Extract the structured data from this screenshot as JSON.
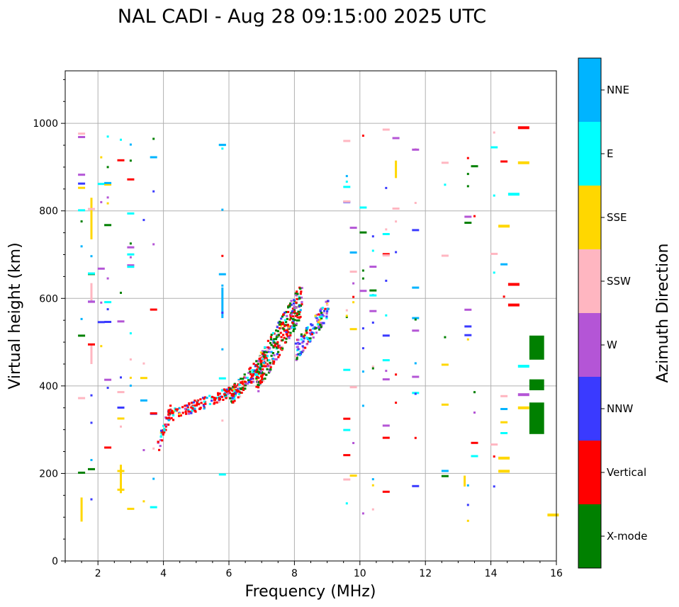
{
  "chart_data": {
    "type": "scatter",
    "title": "NAL CADI - Aug 28 09:15:00 2025 UTC",
    "xlabel": "Frequency (MHz)",
    "ylabel": "Virtual height (km)",
    "xlim": [
      1,
      16
    ],
    "ylim": [
      0,
      1120
    ],
    "xticks": [
      2,
      4,
      6,
      8,
      10,
      12,
      14,
      16
    ],
    "yticks": [
      0,
      200,
      400,
      600,
      800,
      1000
    ],
    "grid": true,
    "colorbar": {
      "label": "Azimuth Direction",
      "categories": [
        {
          "name": "X-mode",
          "color": "#008000"
        },
        {
          "name": "Vertical",
          "color": "#ff0000"
        },
        {
          "name": "NNW",
          "color": "#3a3aff"
        },
        {
          "name": "W",
          "color": "#b455d6"
        },
        {
          "name": "SSW",
          "color": "#ffb6c1"
        },
        {
          "name": "SSE",
          "color": "#ffd700"
        },
        {
          "name": "E",
          "color": "#00ffff"
        },
        {
          "name": "NNE",
          "color": "#00b4ff"
        }
      ]
    },
    "cluster_bands": [
      {
        "name": "F-layer trace lower",
        "x": [
          3.8,
          4.2
        ],
        "y": [
          265,
          350
        ]
      },
      {
        "name": "F-layer trace main",
        "x": [
          4.2,
          6.3
        ],
        "y": [
          335,
          395
        ]
      },
      {
        "name": "F-layer trace rise 1",
        "x": [
          6.0,
          7.2
        ],
        "y": [
          375,
          470
        ]
      },
      {
        "name": "F-layer trace rise 2",
        "x": [
          6.8,
          8.2
        ],
        "y": [
          420,
          600
        ]
      },
      {
        "name": "F-layer trace upper",
        "x": [
          8.0,
          9.0
        ],
        "y": [
          480,
          580
        ]
      }
    ],
    "segments": [
      {
        "category": "NNE",
        "x": 5.8,
        "y0": 555,
        "y1": 625
      },
      {
        "category": "SSW",
        "x": 1.8,
        "y0": 590,
        "y1": 635
      },
      {
        "category": "SSE",
        "x": 1.8,
        "y0": 735,
        "y1": 830
      },
      {
        "category": "SSW",
        "x": 1.8,
        "y0": 450,
        "y1": 495
      },
      {
        "category": "SSE",
        "x": 1.5,
        "y0": 90,
        "y1": 145
      },
      {
        "category": "SSE",
        "x": 2.7,
        "y0": 155,
        "y1": 220
      },
      {
        "category": "SSE",
        "x": 11.1,
        "y0": 875,
        "y1": 915
      },
      {
        "category": "SSE",
        "x": 13.2,
        "y0": 170,
        "y1": 195
      },
      {
        "category": "X-mode",
        "x": 15.4,
        "y0": 460,
        "y1": 515,
        "w": 0.45
      },
      {
        "category": "X-mode",
        "x": 15.4,
        "y0": 390,
        "y1": 415,
        "w": 0.45
      },
      {
        "category": "X-mode",
        "x": 15.4,
        "y0": 290,
        "y1": 362,
        "w": 0.45
      }
    ],
    "right_marks": [
      {
        "category": "Vertical",
        "x": 15.0,
        "y": 990
      },
      {
        "category": "SSE",
        "x": 15.0,
        "y": 910
      },
      {
        "category": "SSE",
        "x": 15.0,
        "y": 350
      },
      {
        "category": "SSE",
        "x": 15.9,
        "y": 105
      },
      {
        "category": "Vertical",
        "x": 14.7,
        "y": 632
      },
      {
        "category": "Vertical",
        "x": 14.7,
        "y": 585
      },
      {
        "category": "E",
        "x": 14.7,
        "y": 838
      },
      {
        "category": "SSE",
        "x": 14.4,
        "y": 765
      },
      {
        "category": "W",
        "x": 15.0,
        "y": 380
      },
      {
        "category": "E",
        "x": 15.0,
        "y": 445
      },
      {
        "category": "SSE",
        "x": 14.4,
        "y": 205
      },
      {
        "category": "SSE",
        "x": 14.4,
        "y": 235
      }
    ]
  }
}
